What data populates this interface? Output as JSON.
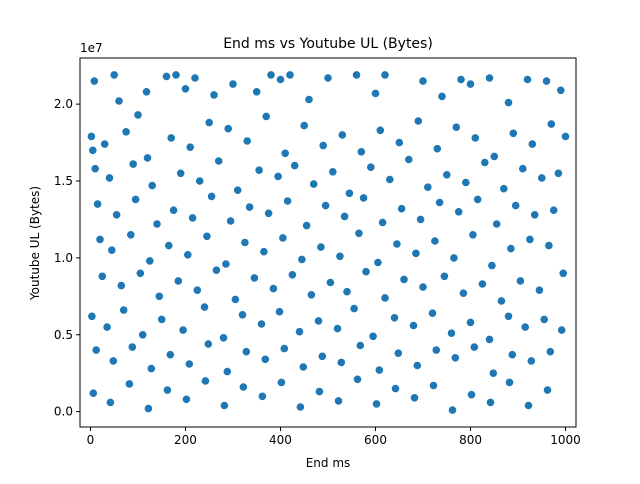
{
  "chart_data": {
    "type": "scatter",
    "title": "End ms vs Youtube UL (Bytes)",
    "xlabel": "End ms",
    "ylabel": "Youtube UL (Bytes)",
    "y_offset_label": "1e7",
    "xlim": [
      -22,
      1022
    ],
    "ylim": [
      -0.1,
      2.3
    ],
    "y_scale_multiplier": 10000000,
    "x_ticks": [
      0,
      200,
      400,
      600,
      800,
      1000
    ],
    "x_tick_labels": [
      "0",
      "200",
      "400",
      "600",
      "800",
      "1000"
    ],
    "y_ticks": [
      0.0,
      0.5,
      1.0,
      1.5,
      2.0
    ],
    "y_tick_labels": [
      "0.0",
      "0.5",
      "1.0",
      "1.5",
      "2.0"
    ],
    "grid": false,
    "legend": "none",
    "colors": {
      "marker_fill": "#1f77b4",
      "marker_edge": "#ffffff",
      "axes": "#000000"
    },
    "series": [
      {
        "x": [
          2,
          8,
          50,
          60,
          100,
          118,
          160,
          180,
          200,
          220,
          260,
          300,
          350,
          380,
          400,
          420,
          460,
          500,
          560,
          600,
          620,
          700,
          740,
          780,
          800,
          840,
          880,
          920,
          960,
          990,
          5,
          30,
          75,
          120,
          170,
          210,
          250,
          290,
          330,
          370,
          410,
          450,
          490,
          530,
          570,
          610,
          650,
          690,
          730,
          770,
          810,
          850,
          890,
          930,
          970,
          1000,
          10,
          40,
          90,
          130,
          190,
          230,
          270,
          310,
          355,
          395,
          430,
          470,
          510,
          545,
          590,
          630,
          670,
          710,
          750,
          790,
          830,
          870,
          910,
          950,
          985,
          15,
          55,
          95,
          140,
          175,
          215,
          255,
          295,
          335,
          375,
          415,
          455,
          495,
          535,
          575,
          615,
          655,
          695,
          735,
          775,
          815,
          855,
          895,
          935,
          975,
          20,
          45,
          85,
          125,
          165,
          205,
          245,
          285,
          325,
          365,
          405,
          445,
          485,
          525,
          565,
          605,
          645,
          685,
          725,
          765,
          805,
          845,
          885,
          925,
          965,
          25,
          65,
          105,
          145,
          185,
          225,
          265,
          305,
          345,
          385,
          425,
          465,
          505,
          540,
          580,
          620,
          660,
          700,
          745,
          785,
          825,
          865,
          905,
          945,
          995,
          3,
          35,
          70,
          110,
          150,
          195,
          240,
          280,
          320,
          360,
          398,
          440,
          480,
          520,
          555,
          595,
          640,
          680,
          720,
          760,
          800,
          840,
          880,
          915,
          955,
          992,
          12,
          48,
          88,
          128,
          168,
          208,
          248,
          288,
          328,
          368,
          408,
          448,
          488,
          528,
          568,
          608,
          648,
          688,
          728,
          768,
          808,
          848,
          888,
          928,
          968,
          6,
          42,
          82,
          122,
          162,
          202,
          242,
          282,
          322,
          362,
          402,
          442,
          482,
          522,
          562,
          602,
          642,
          682,
          722,
          762,
          802,
          842,
          882,
          922,
          962
        ],
        "y": [
          1.79,
          2.15,
          2.19,
          2.02,
          1.93,
          2.08,
          2.18,
          2.19,
          2.1,
          2.17,
          2.06,
          2.13,
          2.08,
          2.19,
          2.16,
          2.19,
          2.03,
          2.17,
          2.19,
          2.07,
          2.19,
          2.15,
          2.05,
          2.16,
          2.13,
          2.17,
          2.01,
          2.16,
          2.15,
          2.09,
          1.7,
          1.74,
          1.82,
          1.65,
          1.78,
          1.72,
          1.88,
          1.84,
          1.76,
          1.92,
          1.68,
          1.86,
          1.73,
          1.8,
          1.69,
          1.83,
          1.75,
          1.89,
          1.71,
          1.85,
          1.78,
          1.66,
          1.81,
          1.74,
          1.87,
          1.79,
          1.58,
          1.52,
          1.61,
          1.47,
          1.55,
          1.5,
          1.63,
          1.44,
          1.57,
          1.53,
          1.6,
          1.48,
          1.56,
          1.42,
          1.59,
          1.51,
          1.64,
          1.46,
          1.54,
          1.49,
          1.62,
          1.45,
          1.58,
          1.52,
          1.55,
          1.35,
          1.28,
          1.38,
          1.22,
          1.31,
          1.26,
          1.4,
          1.24,
          1.33,
          1.29,
          1.37,
          1.21,
          1.34,
          1.27,
          1.39,
          1.23,
          1.32,
          1.25,
          1.36,
          1.3,
          1.38,
          1.22,
          1.34,
          1.28,
          1.31,
          1.12,
          1.05,
          1.15,
          0.98,
          1.08,
          1.02,
          1.14,
          0.96,
          1.1,
          1.04,
          1.13,
          0.99,
          1.07,
          1.01,
          1.16,
          0.97,
          1.09,
          1.03,
          1.11,
          1.0,
          1.15,
          0.95,
          1.06,
          1.12,
          1.08,
          0.88,
          0.82,
          0.9,
          0.75,
          0.85,
          0.79,
          0.92,
          0.73,
          0.87,
          0.8,
          0.89,
          0.76,
          0.84,
          0.78,
          0.91,
          0.74,
          0.86,
          0.81,
          0.88,
          0.77,
          0.83,
          0.72,
          0.85,
          0.79,
          0.9,
          0.62,
          0.55,
          0.66,
          0.5,
          0.6,
          0.53,
          0.68,
          0.48,
          0.63,
          0.57,
          0.65,
          0.52,
          0.59,
          0.54,
          0.67,
          0.49,
          0.61,
          0.56,
          0.64,
          0.51,
          0.58,
          0.47,
          0.62,
          0.55,
          0.6,
          0.53,
          0.4,
          0.33,
          0.42,
          0.28,
          0.37,
          0.31,
          0.44,
          0.26,
          0.39,
          0.34,
          0.41,
          0.29,
          0.36,
          0.32,
          0.43,
          0.27,
          0.38,
          0.3,
          0.4,
          0.35,
          0.42,
          0.25,
          0.37,
          0.33,
          0.39,
          0.12,
          0.06,
          0.18,
          0.02,
          0.14,
          0.08,
          0.2,
          0.04,
          0.16,
          0.1,
          0.19,
          0.03,
          0.13,
          0.07,
          0.21,
          0.05,
          0.15,
          0.09,
          0.17,
          0.01,
          0.11,
          0.06,
          0.19,
          0.04,
          0.14
        ]
      }
    ]
  }
}
